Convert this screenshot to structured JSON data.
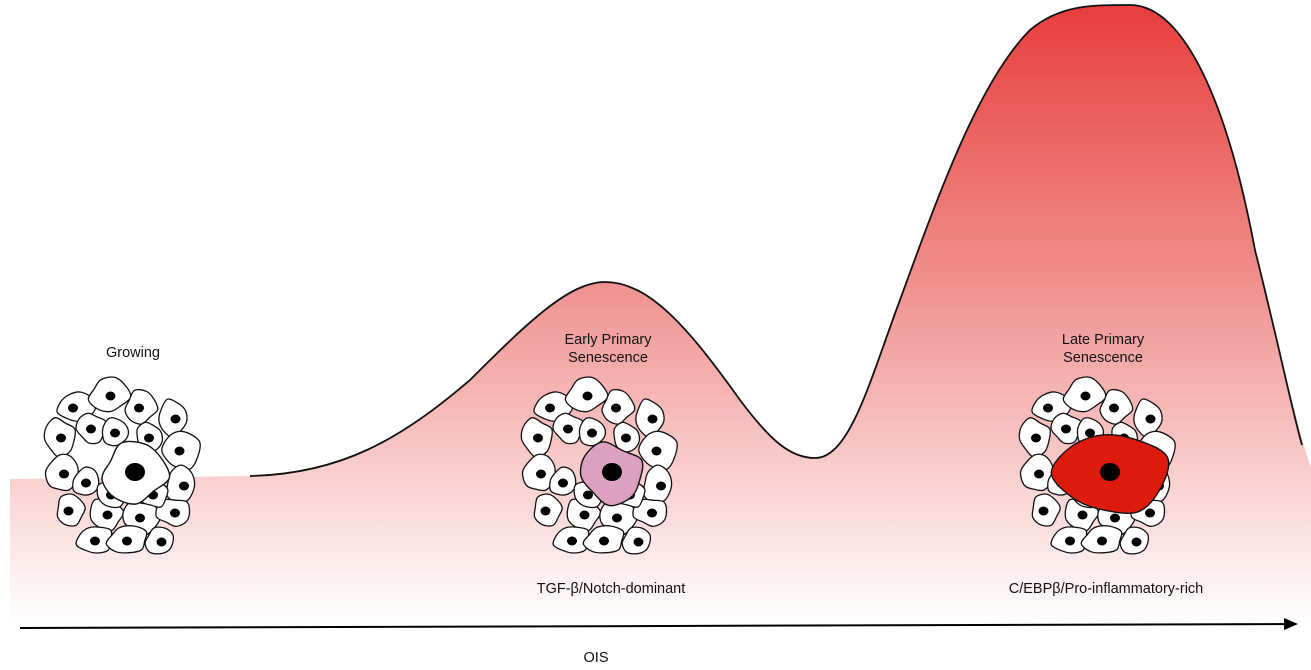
{
  "stages": [
    {
      "id": "growing",
      "lines": [
        "Growing"
      ]
    },
    {
      "id": "early",
      "lines": [
        "Early Primary",
        "Senescence"
      ]
    },
    {
      "id": "late",
      "lines": [
        "Late Primary",
        "Senescence"
      ]
    }
  ],
  "profiles": {
    "early": "TGF-β/Notch-dominant",
    "late": "C/EBPβ/Pro-inflammatory-rich"
  },
  "axis": {
    "label": "OIS"
  },
  "colors": {
    "curve_top": "#e8403f",
    "curve_mid": "#f0908e",
    "curve_bottom": "#ffffff",
    "cell_fill": "#ffffff",
    "nucleus": "#000000",
    "early_center_cell": "#dca0c0",
    "late_center_cell": "#dd1b0c",
    "outline": "#111111"
  }
}
